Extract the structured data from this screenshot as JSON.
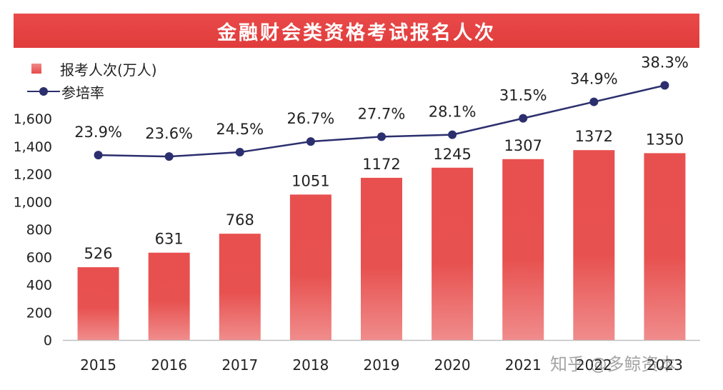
{
  "title": "金融财会类资格考试报名人次",
  "legend": {
    "bar_label": "报考人次(万人)",
    "line_label": "参培率"
  },
  "watermark": "知乎 @多鲸资本",
  "colors": {
    "bar_top": "#e9504f",
    "bar_bottom": "#f08a8a",
    "line": "#2c2f6e",
    "title_bg": "#e34444"
  },
  "chart_data": {
    "type": "bar",
    "categories": [
      "2015",
      "2016",
      "2017",
      "2018",
      "2019",
      "2020",
      "2021",
      "2022",
      "2023"
    ],
    "ylim": [
      0,
      1600
    ],
    "yticks": [
      0,
      200,
      400,
      600,
      800,
      1000,
      1200,
      1400,
      1600
    ],
    "ytick_labels": [
      "0",
      "200",
      "400",
      "600",
      "800",
      "1,000",
      "1,200",
      "1,400",
      "1,600"
    ],
    "series": [
      {
        "name": "报考人次(万人)",
        "type": "bar",
        "values": [
          526,
          631,
          768,
          1051,
          1172,
          1245,
          1307,
          1372,
          1350
        ],
        "labels": [
          "526",
          "631",
          "768",
          "1051",
          "1172",
          "1245",
          "1307",
          "1372",
          "1350"
        ]
      },
      {
        "name": "参培率",
        "type": "line",
        "values": [
          23.9,
          23.6,
          24.5,
          26.7,
          27.7,
          28.1,
          31.5,
          34.9,
          38.3
        ],
        "labels": [
          "23.9%",
          "23.6%",
          "24.5%",
          "26.7%",
          "27.7%",
          "28.1%",
          "31.5%",
          "34.9%",
          "38.3%"
        ]
      }
    ]
  }
}
